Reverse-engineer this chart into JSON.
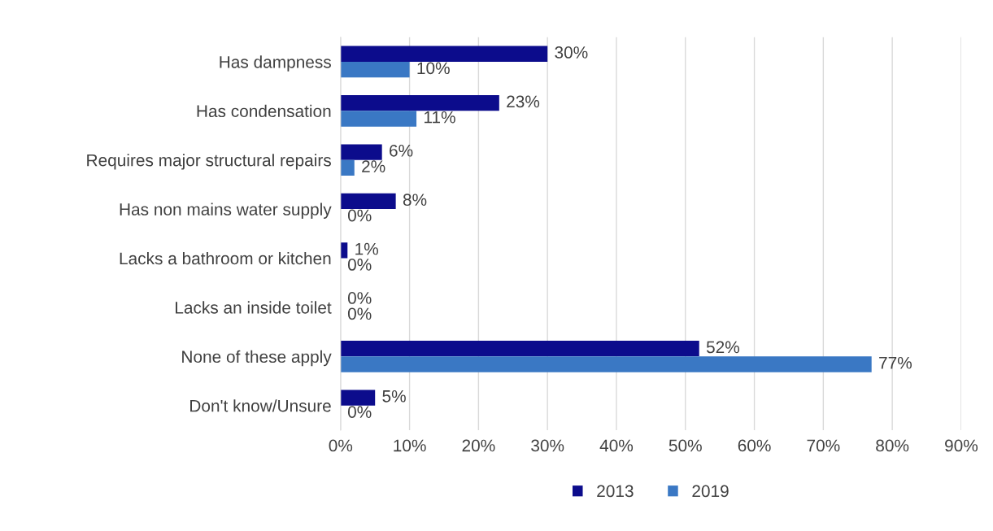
{
  "chart_data": {
    "type": "bar",
    "orientation": "horizontal",
    "categories": [
      "Has dampness",
      "Has condensation",
      "Requires major structural repairs",
      "Has non mains water supply",
      "Lacks a bathroom or kitchen",
      "Lacks an inside toilet",
      "None of these apply",
      "Don't know/Unsure"
    ],
    "series": [
      {
        "name": "2013",
        "color": "#0c0c8c",
        "values": [
          30,
          23,
          6,
          8,
          1,
          0,
          52,
          5
        ],
        "value_labels": [
          "30%",
          "23%",
          "6%",
          "8%",
          "1%",
          "0%",
          "52%",
          "5%"
        ]
      },
      {
        "name": "2019",
        "color": "#3a78c4",
        "values": [
          10,
          11,
          2,
          0,
          0,
          0,
          77,
          0
        ],
        "value_labels": [
          "10%",
          "11%",
          "2%",
          "0%",
          "0%",
          "0%",
          "77%",
          "0%"
        ]
      }
    ],
    "xlim": [
      0,
      90
    ],
    "xticks": [
      {
        "value": 0,
        "label": "0%"
      },
      {
        "value": 10,
        "label": "10%"
      },
      {
        "value": 20,
        "label": "20%"
      },
      {
        "value": 30,
        "label": "30%"
      },
      {
        "value": 40,
        "label": "40%"
      },
      {
        "value": 50,
        "label": "50%"
      },
      {
        "value": 60,
        "label": "60%"
      },
      {
        "value": 70,
        "label": "70%"
      },
      {
        "value": 80,
        "label": "80%"
      },
      {
        "value": 90,
        "label": "90%"
      }
    ],
    "grid": "x",
    "legend": "bottom"
  }
}
